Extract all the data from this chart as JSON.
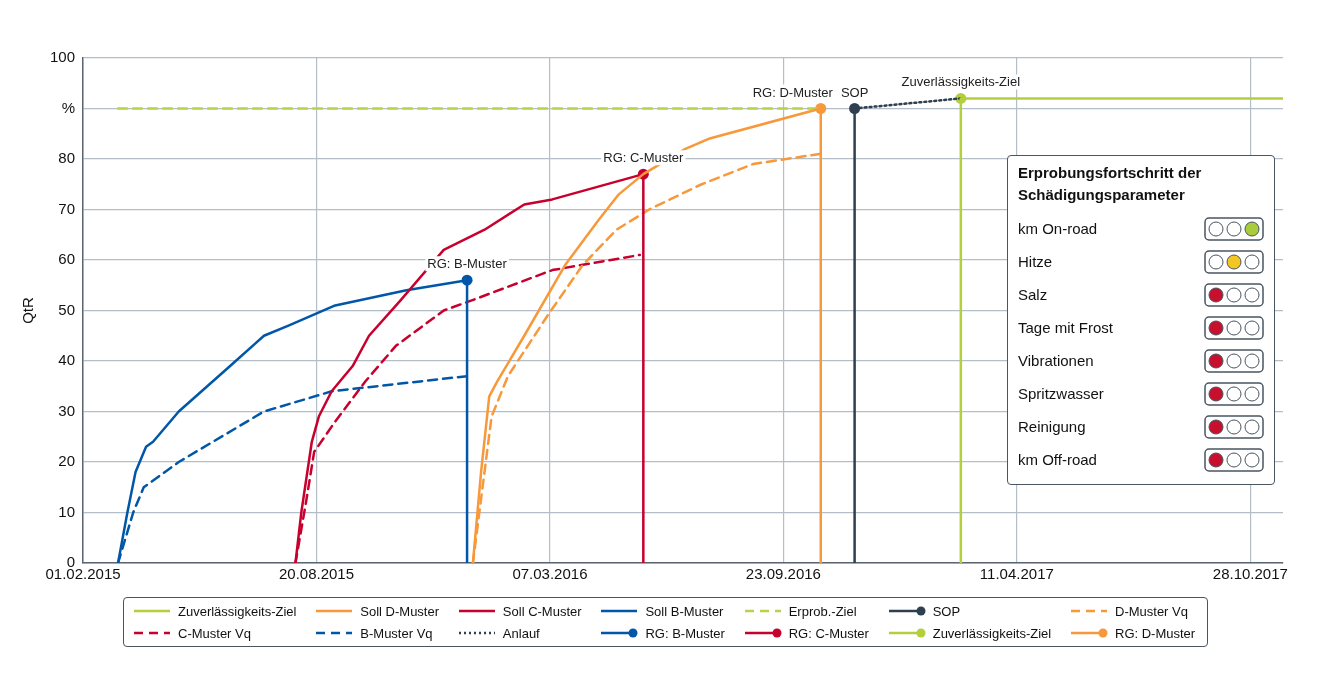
{
  "chart_data": [
    {
      "type": "line",
      "ylabel": "QtR",
      "xlim": [
        "2015-02-01",
        "2017-11-25"
      ],
      "xticks": [
        {
          "value": "2015-02-01",
          "label": "01.02.2015"
        },
        {
          "value": "2015-08-20",
          "label": "20.08.2015"
        },
        {
          "value": "2016-03-07",
          "label": "07.03.2016"
        },
        {
          "value": "2016-09-23",
          "label": "23.09.2016"
        },
        {
          "value": "2017-04-11",
          "label": "11.04.2017"
        },
        {
          "value": "2017-10-28",
          "label": "28.10.2017"
        }
      ],
      "ylim": [
        0,
        100
      ],
      "yticks": [
        0,
        10,
        20,
        30,
        40,
        50,
        60,
        70,
        80,
        {
          "value": 90,
          "label": "%"
        },
        100
      ],
      "grid": true,
      "legend": "bottom",
      "annotations": [
        {
          "text": "RG: B-Muster",
          "x": "2015-12-27",
          "y": 56
        },
        {
          "text": "RG: C-Muster",
          "x": "2016-05-26",
          "y": 77
        },
        {
          "text": "RG: D-Muster",
          "x": "2016-10-25",
          "y": 90
        },
        {
          "text": "SOP",
          "x": "2016-11-23",
          "y": 90
        },
        {
          "text": "Zuverlässigkeits-Ziel",
          "x": "2017-02-22",
          "y": 92
        }
      ],
      "series": [
        {
          "name": "Zuverlässigkeits-Ziel",
          "color": "#b3cf3b",
          "line_style": "solid",
          "x": [
            "2017-02-22",
            "2017-02-22",
            "2017-11-25"
          ],
          "values": [
            0,
            92,
            92
          ]
        },
        {
          "name": "Soll D-Muster",
          "color": "#f7993a",
          "line_style": "solid",
          "x": [
            "2016-01-01",
            "2016-01-08",
            "2016-01-15",
            "2016-01-22",
            "2016-02-14",
            "2016-03-20",
            "2016-04-18",
            "2016-05-05",
            "2016-05-26",
            "2016-07-01",
            "2016-07-21",
            "2016-10-25",
            "2016-10-25"
          ],
          "values": [
            0,
            18,
            33,
            36,
            45,
            59,
            68,
            73,
            77,
            82,
            84,
            90,
            0
          ]
        },
        {
          "name": "Soll C-Muster",
          "color": "#c8002d",
          "line_style": "solid",
          "x": [
            "2015-08-02",
            "2015-08-07",
            "2015-08-16",
            "2015-08-22",
            "2015-09-02",
            "2015-09-20",
            "2015-10-04",
            "2015-10-31",
            "2015-12-07",
            "2016-01-11",
            "2016-02-14",
            "2016-03-09",
            "2016-05-26",
            "2016-05-26"
          ],
          "values": [
            0,
            10,
            24,
            29,
            34,
            39,
            45,
            52,
            62,
            66,
            71,
            72,
            77,
            0
          ]
        },
        {
          "name": "Soll B-Muster",
          "color": "#0057a8",
          "line_style": "solid",
          "x": [
            "2015-03-03",
            "2015-03-11",
            "2015-03-18",
            "2015-03-27",
            "2015-04-02",
            "2015-04-24",
            "2015-06-07",
            "2015-07-06",
            "2015-07-27",
            "2015-09-05",
            "2015-11-05",
            "2015-12-27",
            "2015-12-27"
          ],
          "values": [
            0,
            10,
            18,
            23,
            24,
            30,
            39,
            45,
            47,
            51,
            54,
            56,
            0
          ]
        },
        {
          "name": "Erprob.-Ziel",
          "color": "#b8d24a",
          "line_style": "dashed",
          "x": [
            "2015-03-03",
            "2016-10-25"
          ],
          "values": [
            90,
            90
          ]
        },
        {
          "name": "SOP",
          "color": "#2e3f4f",
          "line_style": "solid",
          "marker": "circle",
          "x": [
            "2016-11-23",
            "2016-11-23"
          ],
          "values": [
            0,
            90
          ]
        },
        {
          "name": "D-Muster Vq",
          "color": "#f7993a",
          "line_style": "dashed",
          "x": [
            "2016-01-01",
            "2016-01-17",
            "2016-01-31",
            "2016-03-05",
            "2016-04-04",
            "2016-05-03",
            "2016-05-31",
            "2016-07-15",
            "2016-08-28",
            "2016-10-24"
          ],
          "values": [
            0,
            29,
            37,
            49,
            59,
            66,
            70,
            75,
            79,
            81
          ]
        },
        {
          "name": "C-Muster Vq",
          "color": "#c8002d",
          "line_style": "dashed",
          "x": [
            "2015-08-02",
            "2015-08-11",
            "2015-08-18",
            "2015-09-05",
            "2015-10-01",
            "2015-10-27",
            "2015-12-07",
            "2015-12-31",
            "2016-03-09",
            "2016-05-23"
          ],
          "values": [
            0,
            12,
            22,
            28,
            36,
            43,
            50,
            52,
            58,
            61
          ]
        },
        {
          "name": "B-Muster Vq",
          "color": "#0057a8",
          "line_style": "dashed",
          "x": [
            "2015-03-03",
            "2015-03-16",
            "2015-03-25",
            "2015-04-24",
            "2015-07-06",
            "2015-09-02",
            "2015-12-27"
          ],
          "values": [
            0,
            10,
            15,
            20,
            30,
            34,
            37
          ]
        },
        {
          "name": "Anlauf",
          "color": "#2e3f4f",
          "line_style": "dotted",
          "x": [
            "2016-11-23",
            "2017-02-22"
          ],
          "values": [
            90,
            92
          ]
        },
        {
          "name": "RG: B-Muster",
          "type": "scatter",
          "color": "#0057a8",
          "marker": "circle",
          "x": [
            "2015-12-27"
          ],
          "values": [
            56
          ]
        },
        {
          "name": "RG: C-Muster",
          "type": "scatter",
          "color": "#c8002d",
          "marker": "circle",
          "x": [
            "2016-05-26"
          ],
          "values": [
            77
          ]
        },
        {
          "name": "Zuverlässigkeits-Ziel",
          "type": "scatter",
          "color": "#b3cf3b",
          "marker": "circle",
          "x": [
            "2017-02-22"
          ],
          "values": [
            92
          ]
        },
        {
          "name": "RG: D-Muster",
          "type": "scatter",
          "color": "#f7993a",
          "marker": "circle",
          "x": [
            "2016-10-25"
          ],
          "values": [
            90
          ]
        }
      ]
    },
    {
      "type": "other",
      "title": "Erprobungsfortschritt der Schädigungsparameter",
      "categories": [
        "km On-road",
        "Hitze",
        "Salz",
        "Tage mit Frost",
        "Vibrationen",
        "Spritzwasser",
        "Reinigung",
        "km Off-road"
      ],
      "colors": [
        [
          "#ffffff",
          "#ffffff",
          "#a8cc3c"
        ],
        [
          "#ffffff",
          "#f3c623",
          "#ffffff"
        ],
        [
          "#c8102e",
          "#ffffff",
          "#ffffff"
        ],
        [
          "#c8102e",
          "#ffffff",
          "#ffffff"
        ],
        [
          "#c8102e",
          "#ffffff",
          "#ffffff"
        ],
        [
          "#c8102e",
          "#ffffff",
          "#ffffff"
        ],
        [
          "#c8102e",
          "#ffffff",
          "#ffffff"
        ],
        [
          "#c8102e",
          "#ffffff",
          "#ffffff"
        ]
      ]
    }
  ]
}
